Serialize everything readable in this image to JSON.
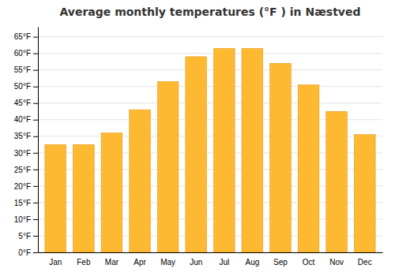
{
  "chart_data": {
    "type": "bar",
    "title": "Average monthly temperatures (°F ) in Næstved",
    "categories": [
      "Jan",
      "Feb",
      "Mar",
      "Apr",
      "May",
      "Jun",
      "Jul",
      "Aug",
      "Sep",
      "Oct",
      "Nov",
      "Dec"
    ],
    "values": [
      32.5,
      32.5,
      36.0,
      43.0,
      51.5,
      59.0,
      61.5,
      61.5,
      57.0,
      50.5,
      42.5,
      35.5
    ],
    "color": "#FDB931",
    "ylim": [
      0,
      68
    ],
    "yticks": [
      {
        "value": 0,
        "label": "0°F"
      },
      {
        "value": 5,
        "label": "5°F"
      },
      {
        "value": 10,
        "label": "10°F"
      },
      {
        "value": 15,
        "label": "15°F"
      },
      {
        "value": 20,
        "label": "20°F"
      },
      {
        "value": 25,
        "label": "25°F"
      },
      {
        "value": 30,
        "label": "30°F"
      },
      {
        "value": 35,
        "label": "35°F"
      },
      {
        "value": 40,
        "label": "40°F"
      },
      {
        "value": 45,
        "label": "45°F"
      },
      {
        "value": 50,
        "label": "50°F"
      },
      {
        "value": 55,
        "label": "55°F"
      },
      {
        "value": 60,
        "label": "60°F"
      },
      {
        "value": 65,
        "label": "65°F"
      }
    ],
    "grid": true
  }
}
